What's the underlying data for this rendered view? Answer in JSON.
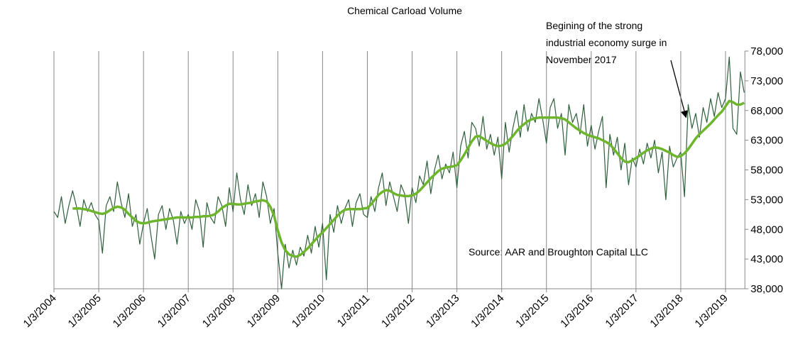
{
  "chart_data": {
    "type": "line",
    "title": "Chemical Carload Volume",
    "annotation": [
      "Begining of the strong",
      "industrial economy surge in",
      "November 2017"
    ],
    "source": "Source: AAR and Broughton Capital LLC",
    "categories": [
      "1/3/2004",
      null,
      null,
      null,
      null,
      null,
      null,
      null,
      null,
      null,
      null,
      null,
      "1/3/2005",
      null,
      null,
      null,
      null,
      null,
      null,
      null,
      null,
      null,
      null,
      null,
      "1/3/2006",
      null,
      null,
      null,
      null,
      null,
      null,
      null,
      null,
      null,
      null,
      null,
      "1/3/2007",
      null,
      null,
      null,
      null,
      null,
      null,
      null,
      null,
      null,
      null,
      null,
      "1/3/2008",
      null,
      null,
      null,
      null,
      null,
      null,
      null,
      null,
      null,
      null,
      null,
      "1/3/2009",
      null,
      null,
      null,
      null,
      null,
      null,
      null,
      null,
      null,
      null,
      null,
      "1/3/2010",
      null,
      null,
      null,
      null,
      null,
      null,
      null,
      null,
      null,
      null,
      null,
      "1/3/2011",
      null,
      null,
      null,
      null,
      null,
      null,
      null,
      null,
      null,
      null,
      null,
      "1/3/2012",
      null,
      null,
      null,
      null,
      null,
      null,
      null,
      null,
      null,
      null,
      null,
      "1/3/2013",
      null,
      null,
      null,
      null,
      null,
      null,
      null,
      null,
      null,
      null,
      null,
      "1/3/2014",
      null,
      null,
      null,
      null,
      null,
      null,
      null,
      null,
      null,
      null,
      null,
      "1/3/2015",
      null,
      null,
      null,
      null,
      null,
      null,
      null,
      null,
      null,
      null,
      null,
      "1/3/2016",
      null,
      null,
      null,
      null,
      null,
      null,
      null,
      null,
      null,
      null,
      null,
      "1/3/2017",
      null,
      null,
      null,
      null,
      null,
      null,
      null,
      null,
      null,
      null,
      null,
      "1/3/2018",
      null,
      null,
      null,
      null,
      null,
      null,
      null,
      null,
      null,
      null,
      null,
      "1/3/2019",
      null,
      null,
      null,
      null,
      null
    ],
    "series": [
      {
        "color": "#2f5f3c",
        "width": 1.2,
        "values": [
          51000,
          50000,
          53500,
          49000,
          52000,
          54500,
          52000,
          48500,
          53000,
          51000,
          52500,
          50500,
          49500,
          44000,
          52000,
          53500,
          51000,
          56000,
          52500,
          50000,
          54000,
          48500,
          50500,
          45500,
          49000,
          51500,
          47000,
          43000,
          50500,
          52000,
          48000,
          51500,
          49500,
          45500,
          51000,
          49000,
          50500,
          48000,
          53000,
          51000,
          45000,
          52500,
          50000,
          49000,
          53500,
          52000,
          48500,
          55000,
          51000,
          57500,
          53000,
          50500,
          55500,
          52000,
          54000,
          50000,
          56000,
          53500,
          49000,
          51500,
          44000,
          38000,
          45500,
          41500,
          44500,
          42000,
          45000,
          43500,
          47000,
          44000,
          48500,
          45000,
          49000,
          39500,
          50500,
          47500,
          52000,
          49000,
          51500,
          53000,
          48500,
          52500,
          54000,
          50500,
          50000,
          53500,
          51000,
          55000,
          57500,
          52000,
          56000,
          53500,
          51000,
          55500,
          54000,
          49000,
          55000,
          52500,
          57000,
          55500,
          59500,
          54000,
          58000,
          60500,
          56500,
          59000,
          57500,
          61000,
          55000,
          62000,
          64500,
          60000,
          66000,
          65000,
          62000,
          67000,
          61500,
          64000,
          60500,
          63500,
          56500,
          66000,
          61000,
          65000,
          68000,
          63500,
          69000,
          64500,
          67500,
          66000,
          70000,
          66500,
          62500,
          68500,
          70000,
          65000,
          67500,
          60500,
          69000,
          66000,
          67500,
          64000,
          69000,
          62000,
          65500,
          61500,
          64500,
          67000,
          55000,
          64000,
          60500,
          63500,
          58000,
          62500,
          55500,
          60000,
          58500,
          61500,
          59000,
          62500,
          60000,
          63000,
          57500,
          61000,
          53000,
          62000,
          58500,
          60000,
          61000,
          53500,
          69000,
          65000,
          67500,
          63500,
          68500,
          66000,
          70000,
          67000,
          71000,
          68500,
          70000,
          77000,
          65000,
          64000,
          74500,
          71000
        ]
      },
      {
        "color": "#6cb52d",
        "width": 3.5,
        "values": [
          null,
          null,
          null,
          null,
          null,
          51500,
          51500,
          51500,
          51400,
          51300,
          51100,
          50900,
          50700,
          50600,
          50800,
          51200,
          51600,
          51800,
          51700,
          51300,
          50600,
          50000,
          49400,
          49100,
          49000,
          49100,
          49300,
          49400,
          49500,
          49600,
          49700,
          49800,
          49900,
          50000,
          50000,
          50000,
          50000,
          50000,
          50100,
          50100,
          50200,
          50200,
          50300,
          50500,
          51000,
          51600,
          52000,
          52300,
          52300,
          52200,
          52200,
          52300,
          52400,
          52500,
          52700,
          52800,
          52900,
          52700,
          51800,
          50300,
          47800,
          45800,
          44500,
          43800,
          43500,
          43400,
          43700,
          44200,
          44800,
          45500,
          46200,
          46900,
          47500,
          48200,
          48900,
          49600,
          50300,
          50900,
          51300,
          51400,
          51400,
          51400,
          51400,
          51500,
          51600,
          52200,
          53000,
          53800,
          54300,
          54600,
          54500,
          54100,
          53800,
          53700,
          53600,
          53600,
          53700,
          54000,
          54500,
          55200,
          55900,
          56600,
          57200,
          57800,
          58200,
          58400,
          58500,
          58600,
          58800,
          59600,
          60600,
          61700,
          62800,
          63600,
          63700,
          63300,
          62900,
          62500,
          62200,
          62000,
          62100,
          62400,
          63000,
          63700,
          64500,
          65200,
          65700,
          66200,
          66500,
          66700,
          66800,
          66800,
          66800,
          66800,
          66800,
          66800,
          66700,
          66500,
          66000,
          65500,
          65000,
          64600,
          64200,
          63900,
          63700,
          63500,
          63300,
          63000,
          62700,
          62300,
          61600,
          60800,
          60000,
          59400,
          59300,
          59600,
          60000,
          60400,
          60900,
          61300,
          61600,
          61800,
          61700,
          61500,
          61200,
          60900,
          60500,
          60200,
          60300,
          60800,
          61500,
          62400,
          63300,
          64000,
          64600,
          65200,
          65800,
          66500,
          67200,
          67800,
          68700,
          69600,
          69400,
          69000,
          69000,
          69300
        ]
      }
    ],
    "ylim": [
      38000,
      78000
    ],
    "yticks": [
      {
        "value": 38000,
        "label": "38,000"
      },
      {
        "value": 43000,
        "label": "43,000"
      },
      {
        "value": 48000,
        "label": "48,000"
      },
      {
        "value": 53000,
        "label": "53,000"
      },
      {
        "value": 58000,
        "label": "58,000"
      },
      {
        "value": 63000,
        "label": "63,000"
      },
      {
        "value": 68000,
        "label": "68,000"
      },
      {
        "value": 73000,
        "label": "73,000"
      },
      {
        "value": 78000,
        "label": "78,000"
      }
    ],
    "grid": true
  }
}
